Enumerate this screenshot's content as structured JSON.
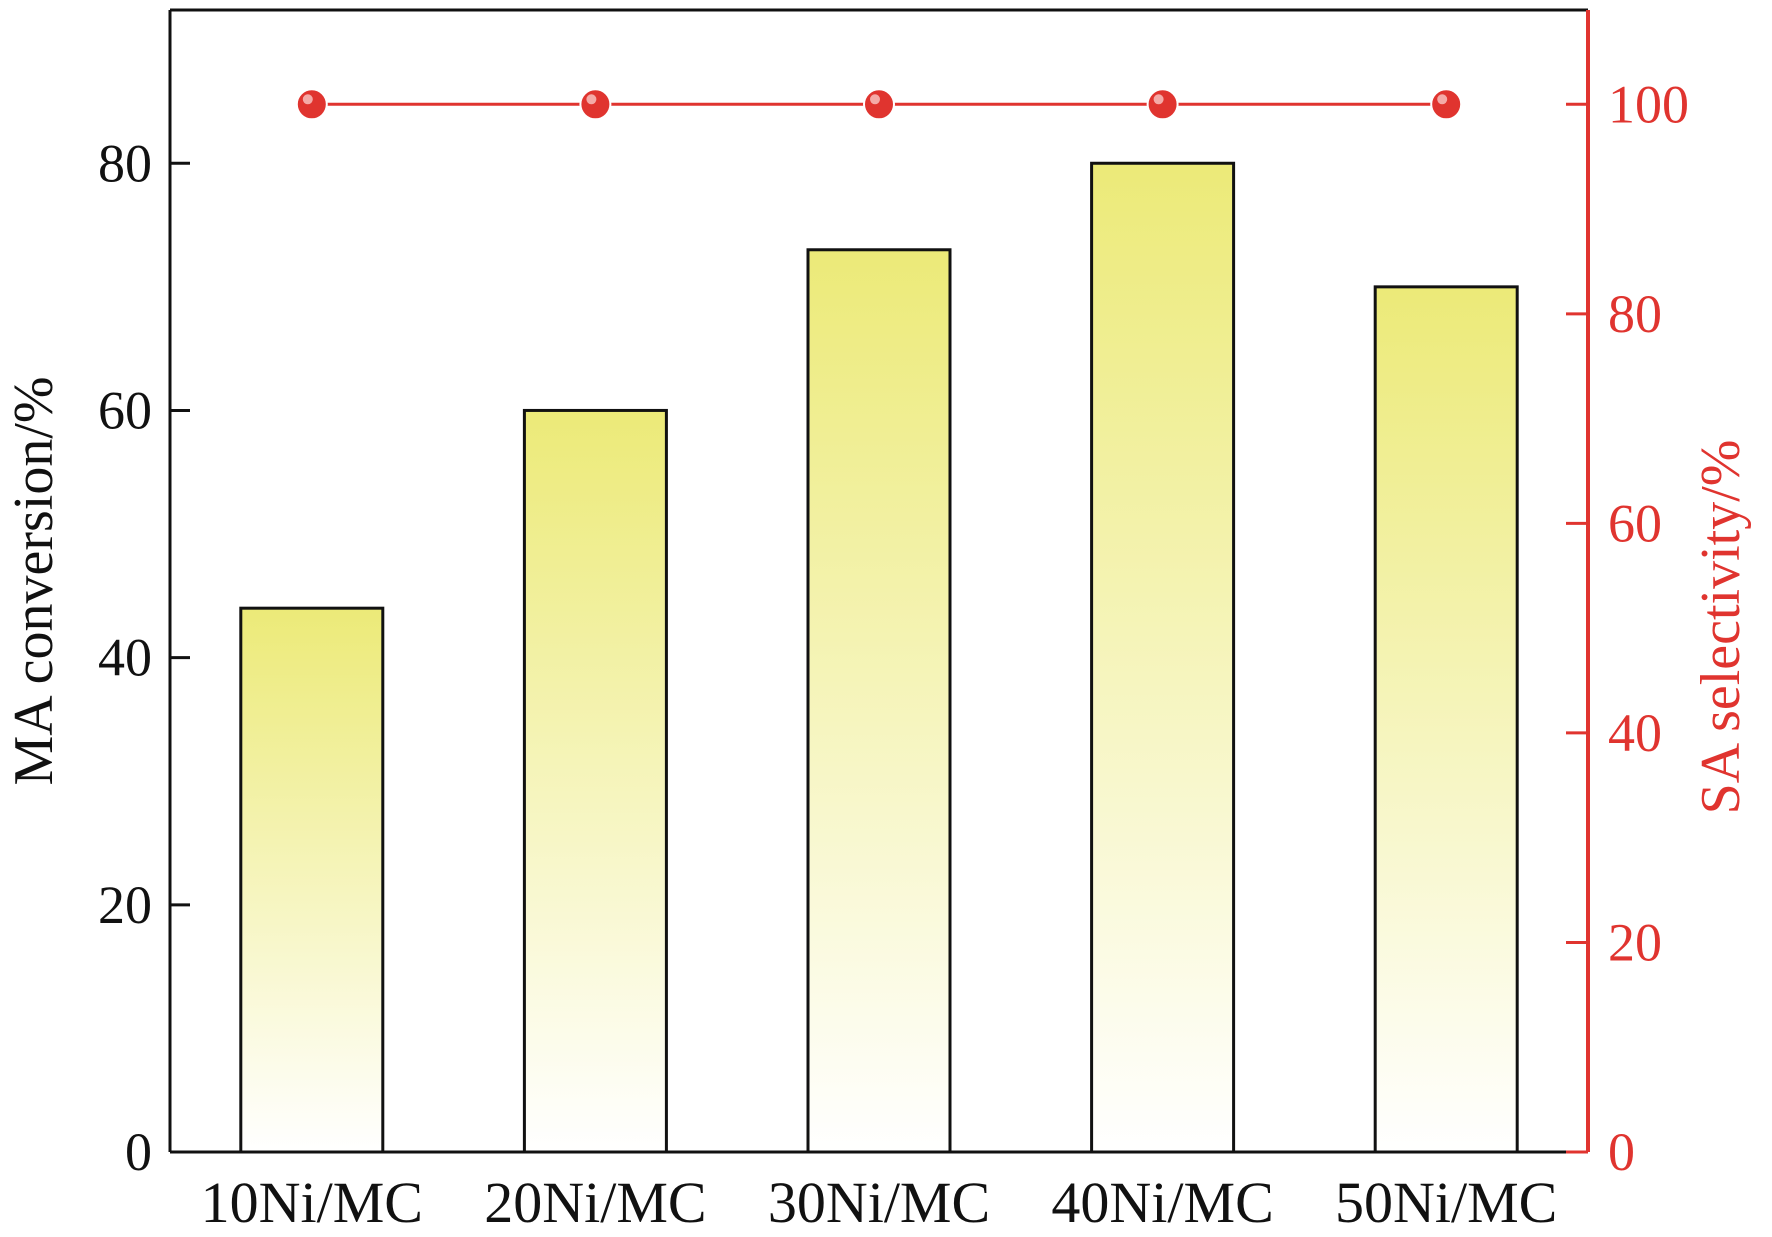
{
  "chart_data": {
    "type": "bar",
    "categories": [
      "10Ni/MC",
      "20Ni/MC",
      "30Ni/MC",
      "40Ni/MC",
      "50Ni/MC"
    ],
    "series": [
      {
        "axis": "left",
        "kind": "bar",
        "values": [
          44,
          60,
          73,
          80,
          70
        ]
      },
      {
        "axis": "right",
        "kind": "line",
        "values": [
          100,
          100,
          100,
          100,
          100
        ]
      }
    ],
    "ylabel": "MA conversion/%",
    "ylabel_right": "SA selectivity/%",
    "ylim": [
      0,
      92.4
    ],
    "ylim_right": [
      0,
      109
    ],
    "yticks": [
      "0",
      "20",
      "40",
      "60",
      "80"
    ],
    "yticks_right": [
      "0",
      "20",
      "40",
      "60",
      "80",
      "100"
    ],
    "grid": false,
    "colors": {
      "bar_top": "#ecea78",
      "bar_bottom": "#ffffff",
      "bar_edge": "#111111",
      "line": "#e0342f",
      "axis_left": "#111111",
      "axis_right": "#e0342f"
    }
  }
}
